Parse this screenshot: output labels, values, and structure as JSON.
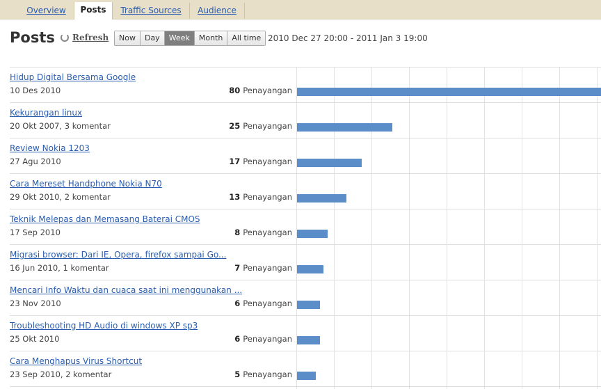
{
  "tabs": [
    {
      "label": "Overview",
      "active": false
    },
    {
      "label": "Posts",
      "active": true
    },
    {
      "label": "Traffic Sources",
      "active": false
    },
    {
      "label": "Audience",
      "active": false
    }
  ],
  "header": {
    "title": "Posts",
    "refresh_label": "Refresh",
    "ranges": [
      {
        "label": "Now",
        "active": false
      },
      {
        "label": "Day",
        "active": false
      },
      {
        "label": "Week",
        "active": true
      },
      {
        "label": "Month",
        "active": false
      },
      {
        "label": "All time",
        "active": false
      }
    ],
    "date_range": "2010 Dec 27 20:00 - 2011 Jan 3 19:00"
  },
  "views_unit": "Penayangan",
  "bar_color": "#5b8ec9",
  "chart_data": {
    "type": "bar",
    "max_value": 80,
    "posts": [
      {
        "title": "Hidup Digital Bersama Google",
        "meta": "10 Des 2010",
        "views": 80
      },
      {
        "title": "Kekurangan linux",
        "meta": "20 Okt 2007, 3 komentar",
        "views": 25
      },
      {
        "title": "Review Nokia 1203",
        "meta": "27 Agu 2010",
        "views": 17
      },
      {
        "title": "Cara Mereset Handphone Nokia N70",
        "meta": "29 Okt 2010, 2 komentar",
        "views": 13
      },
      {
        "title": "Teknik Melepas dan Memasang Baterai CMOS",
        "meta": "17 Sep 2010",
        "views": 8
      },
      {
        "title": "Migrasi browser: Dari IE, Opera, firefox sampai Go...",
        "meta": "16 Jun 2010, 1 komentar",
        "views": 7
      },
      {
        "title": "Mencari Info Waktu dan cuaca saat ini menggunakan ...",
        "meta": "23 Nov 2010",
        "views": 6
      },
      {
        "title": "Troubleshooting HD Audio di windows XP sp3",
        "meta": "25 Okt 2010",
        "views": 6
      },
      {
        "title": "Cara Menghapus Virus Shortcut",
        "meta": "23 Sep 2010, 2 komentar",
        "views": 5
      }
    ]
  }
}
